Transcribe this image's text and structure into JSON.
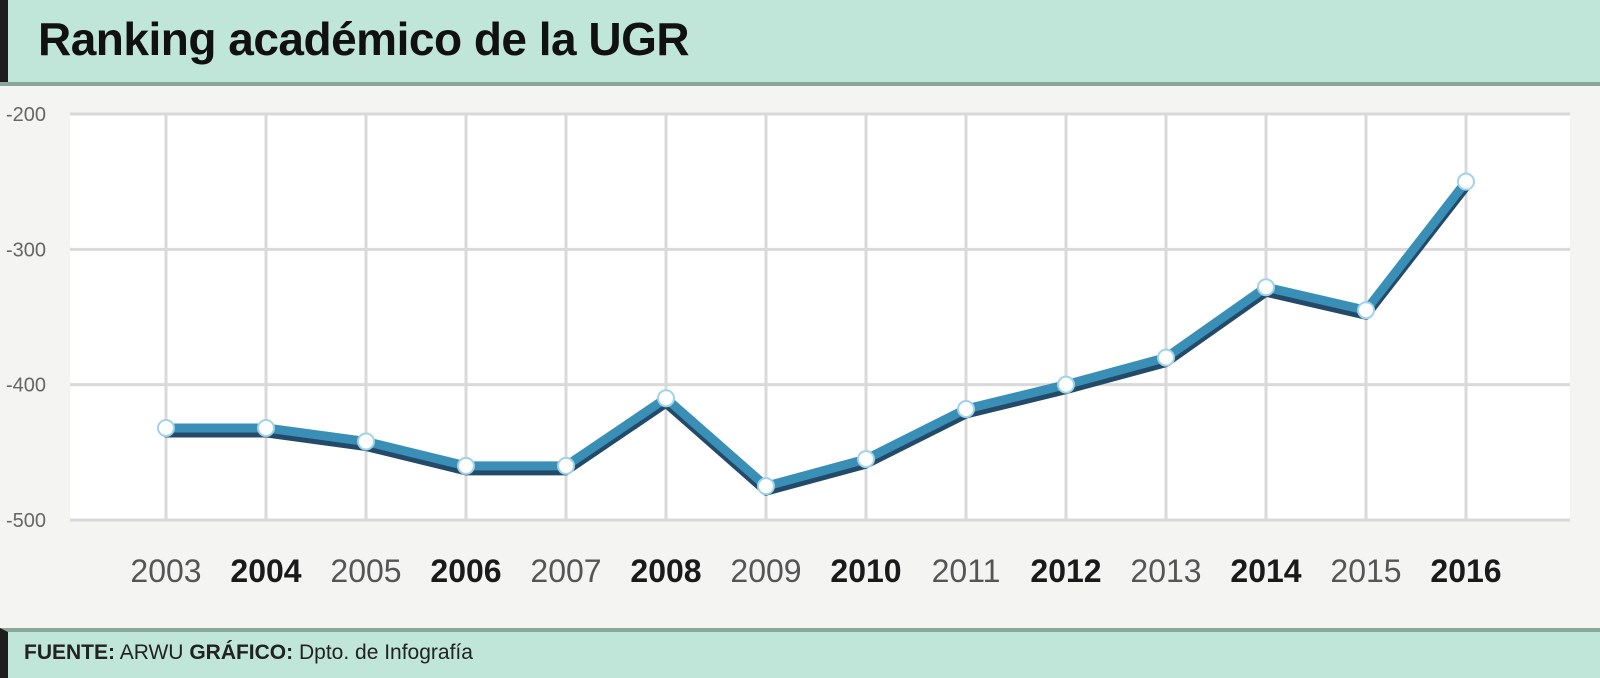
{
  "header": {
    "title": "Ranking académico de la UGR"
  },
  "footer": {
    "source_label": "FUENTE:",
    "source_value": "ARWU",
    "graphic_label": "GRÁFICO:",
    "graphic_value": "Dpto. de Infografía"
  },
  "chart_data": {
    "type": "line",
    "title": "Ranking académico de la UGR",
    "categories": [
      "2003",
      "2004",
      "2005",
      "2006",
      "2007",
      "2008",
      "2009",
      "2010",
      "2011",
      "2012",
      "2013",
      "2014",
      "2015",
      "2016"
    ],
    "bold_categories": [
      "2004",
      "2006",
      "2008",
      "2010",
      "2012",
      "2014",
      "2016"
    ],
    "series": [
      {
        "values": [
          -432,
          -432,
          -442,
          -460,
          -460,
          -410,
          -475,
          -455,
          -418,
          -400,
          -380,
          -328,
          -345,
          -250
        ]
      }
    ],
    "yticks": [
      -200,
      -300,
      -400,
      -500
    ],
    "ytick_labels": [
      "-200",
      "-300",
      "-400",
      "-500"
    ],
    "ylim": [
      -500,
      -200
    ],
    "grid": true,
    "colors": {
      "line": "#3a8fb7",
      "line_shadow": "#244a6a",
      "marker_fill": "#ffffff",
      "grid": "#d9d9d9"
    }
  }
}
